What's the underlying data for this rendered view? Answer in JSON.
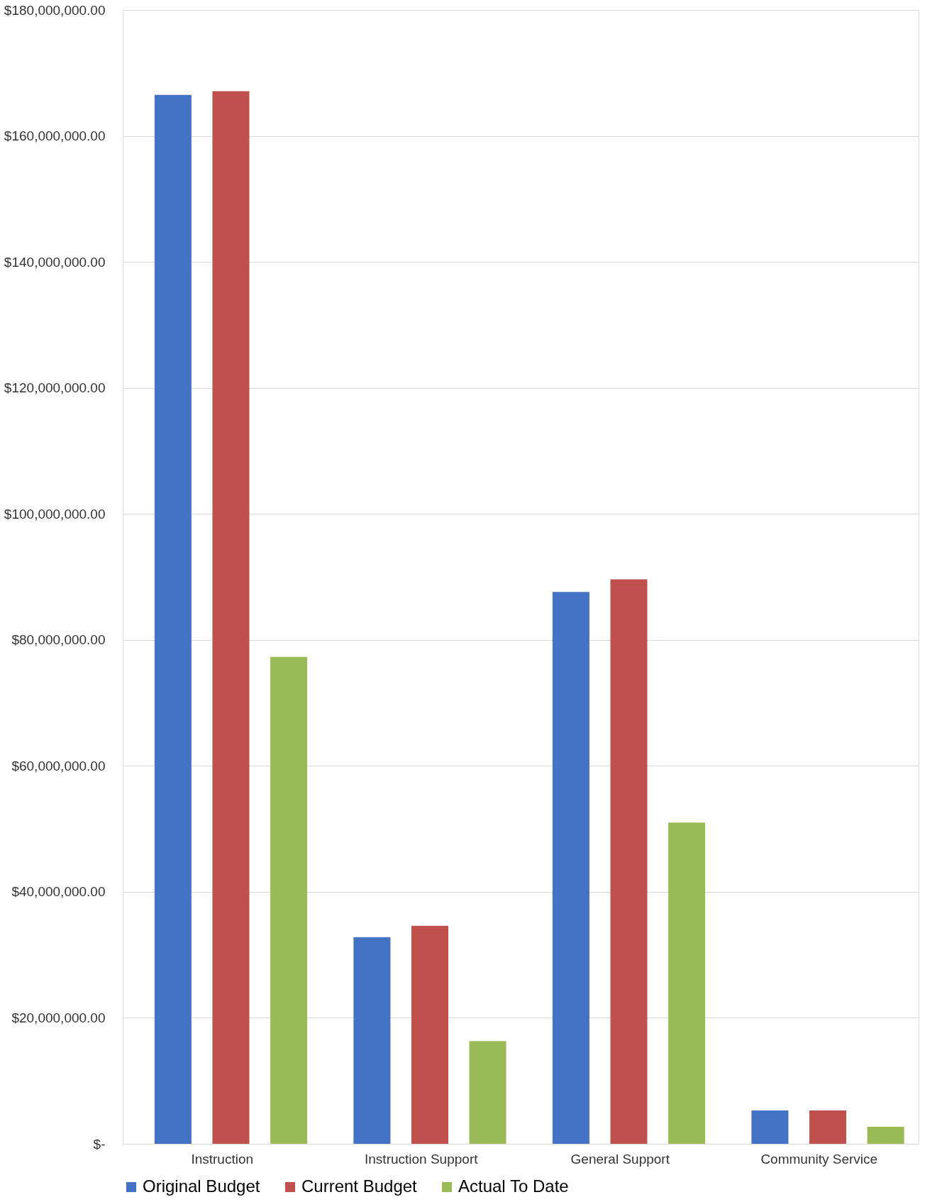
{
  "chart_data": {
    "type": "bar",
    "categories": [
      "Instruction",
      "Instruction Support",
      "General Support",
      "Community Service"
    ],
    "series": [
      {
        "name": "Original Budget",
        "color": "#4472c4",
        "values": [
          166500000,
          32800000,
          87600000,
          5300000
        ]
      },
      {
        "name": "Current Budget",
        "color": "#c0504d",
        "values": [
          167100000,
          34600000,
          89600000,
          5300000
        ]
      },
      {
        "name": "Actual To Date",
        "color": "#9bbb59",
        "values": [
          77300000,
          16300000,
          51000000,
          2700000
        ]
      }
    ],
    "ylim": [
      0,
      180000000
    ],
    "yticks": [
      {
        "value": 0,
        "label": "$-"
      },
      {
        "value": 20000000,
        "label": "$20,000,000.00"
      },
      {
        "value": 40000000,
        "label": "$40,000,000.00"
      },
      {
        "value": 60000000,
        "label": "$60,000,000.00"
      },
      {
        "value": 80000000,
        "label": "$80,000,000.00"
      },
      {
        "value": 100000000,
        "label": "$100,000,000.00"
      },
      {
        "value": 120000000,
        "label": "$120,000,000.00"
      },
      {
        "value": 140000000,
        "label": "$140,000,000.00"
      },
      {
        "value": 160000000,
        "label": "$160,000,000.00"
      },
      {
        "value": 180000000,
        "label": "$180,000,000.00"
      }
    ],
    "grid": "y",
    "legend": "bottom"
  }
}
